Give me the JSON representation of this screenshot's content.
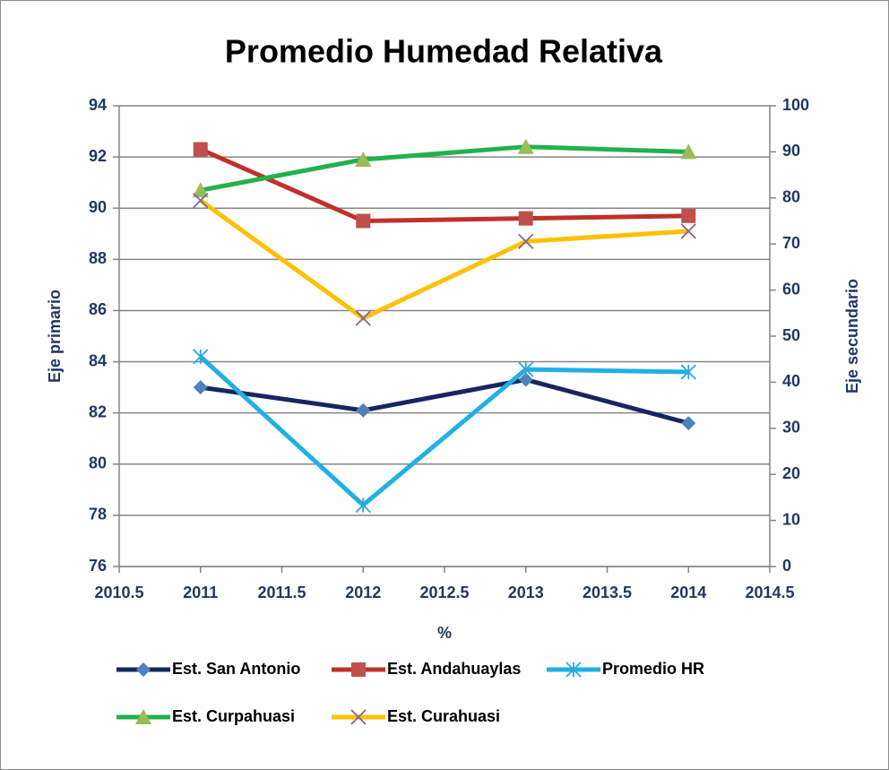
{
  "chart_data": {
    "type": "line",
    "title": "Promedio Humedad Relativa",
    "x_label": "%",
    "y_label": "Eje primario",
    "y2_label": "Eje secundario",
    "x": [
      2011,
      2012,
      2013,
      2014
    ],
    "xlim": [
      2010.5,
      2014.5
    ],
    "xticks": [
      2010.5,
      2011,
      2011.5,
      2012,
      2012.5,
      2013,
      2013.5,
      2014,
      2014.5
    ],
    "ylim": [
      76,
      94
    ],
    "yticks": [
      76,
      78,
      80,
      82,
      84,
      86,
      88,
      90,
      92,
      94
    ],
    "y2lim": [
      0,
      100
    ],
    "y2ticks": [
      0,
      10,
      20,
      30,
      40,
      50,
      60,
      70,
      80,
      90,
      100
    ],
    "grid": true,
    "series": [
      {
        "name": "Est. San Antonio",
        "color": "#17265e",
        "marker": "diamond",
        "marker_color": "#4f81bd",
        "values": [
          83.0,
          82.1,
          83.3,
          81.6
        ]
      },
      {
        "name": "Est. Andahuaylas",
        "color": "#c0302b",
        "marker": "square",
        "marker_color": "#c0504d",
        "values": [
          92.3,
          89.5,
          89.6,
          89.7
        ]
      },
      {
        "name": "Promedio HR",
        "color": "#1fb0e6",
        "marker": "asterisk",
        "marker_color": "#2aa8d8",
        "values": [
          84.2,
          78.4,
          83.7,
          83.6
        ]
      },
      {
        "name": "Est. Curpahuasi",
        "color": "#22b14c",
        "marker": "triangle",
        "marker_color": "#9bbb59",
        "values": [
          90.7,
          91.9,
          92.4,
          92.2
        ]
      },
      {
        "name": "Est. Curahuasi",
        "color": "#ffc000",
        "marker": "x",
        "marker_color": "#8064a2",
        "values": [
          90.3,
          85.7,
          88.7,
          89.1
        ]
      }
    ]
  }
}
